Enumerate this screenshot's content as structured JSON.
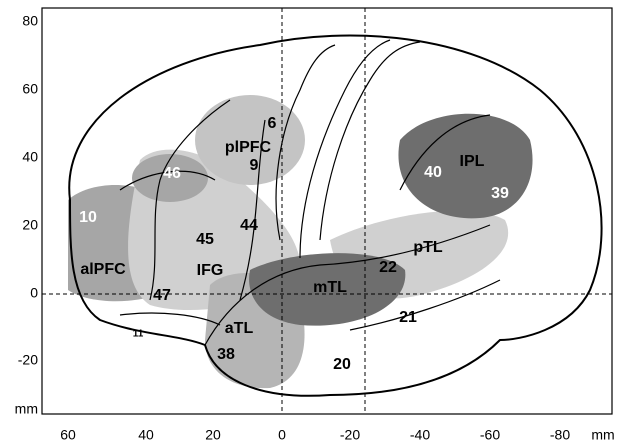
{
  "axes": {
    "xticks": [
      "60",
      "40",
      "20",
      "0",
      "-20",
      "-40",
      "-60",
      "-80"
    ],
    "yticks": [
      "80",
      "60",
      "40",
      "20",
      "0",
      "-20"
    ],
    "x_unit": "mm",
    "y_unit": "mm"
  },
  "regions": {
    "labels": [
      "6",
      "plPFC",
      "9",
      "46",
      "10",
      "45",
      "44",
      "IFG",
      "alPFC",
      "47",
      "11",
      "aTL",
      "38",
      "mTL",
      "22",
      "pTL",
      "21",
      "20",
      "40",
      "IPL",
      "39"
    ]
  }
}
